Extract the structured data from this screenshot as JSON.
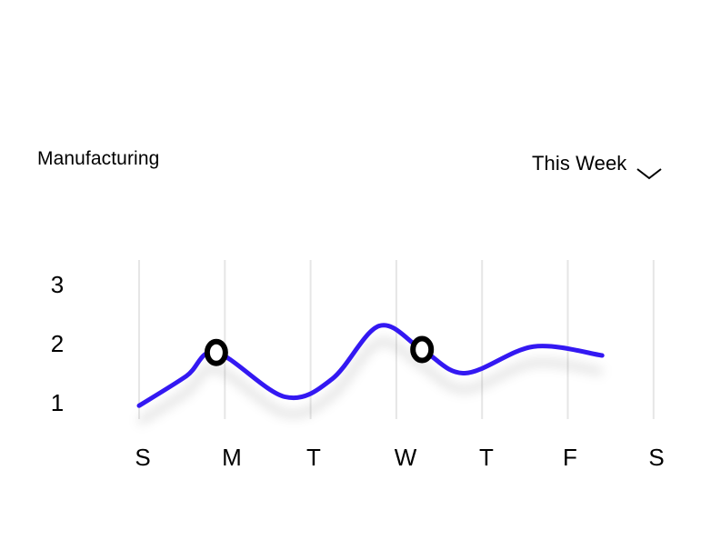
{
  "header": {
    "title": "Manufacturing",
    "period_select": {
      "value": "This Week",
      "icon": "chevron-down-icon"
    }
  },
  "chart_data": {
    "type": "line",
    "title": "Manufacturing",
    "xlabel": "",
    "ylabel": "",
    "categories": [
      "S",
      "M",
      "T",
      "W",
      "T",
      "F",
      "S"
    ],
    "y_ticks": [
      1,
      2,
      3
    ],
    "ylim": [
      0.5,
      3.5
    ],
    "grid": "vertical",
    "series": [
      {
        "color": "#3318F2",
        "points": [
          {
            "x": 0.0,
            "y": 0.95
          },
          {
            "x": 0.55,
            "y": 1.45
          },
          {
            "x": 0.9,
            "y": 1.85
          },
          {
            "x": 1.7,
            "y": 1.1
          },
          {
            "x": 2.25,
            "y": 1.4
          },
          {
            "x": 2.8,
            "y": 2.3
          },
          {
            "x": 3.3,
            "y": 1.9
          },
          {
            "x": 3.8,
            "y": 1.5
          },
          {
            "x": 4.6,
            "y": 1.95
          },
          {
            "x": 5.4,
            "y": 1.8
          }
        ],
        "highlighted_points": [
          {
            "x": 0.9,
            "y": 1.85
          },
          {
            "x": 3.3,
            "y": 1.9
          }
        ]
      }
    ]
  }
}
